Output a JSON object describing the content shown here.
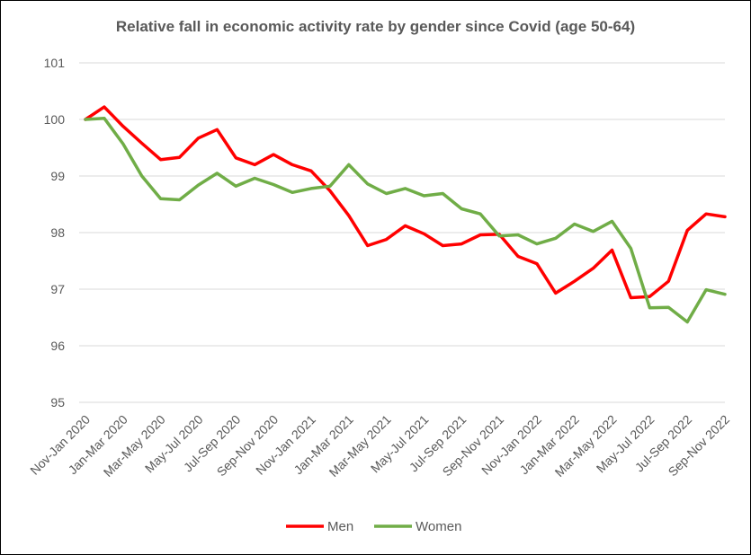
{
  "chart_data": {
    "type": "line",
    "title": "Relative fall in economic activity rate by gender since Covid (age 50-64)",
    "xlabel": "",
    "ylabel": "",
    "ylim": [
      95,
      101
    ],
    "yticks": [
      95,
      96,
      97,
      98,
      99,
      100,
      101
    ],
    "grid": "horizontal",
    "legend": "bottom",
    "x": [
      "Nov-Jan 2020",
      "Dec-Feb 2020",
      "Jan-Mar 2020",
      "Feb-Apr 2020",
      "Mar-May 2020",
      "Apr-Jun 2020",
      "May-Jul 2020",
      "Jun-Aug 2020",
      "Jul-Sep 2020",
      "Aug-Oct 2020",
      "Sep-Nov 2020",
      "Oct-Dec 2020",
      "Nov-Jan 2021",
      "Dec-Feb 2021",
      "Jan-Mar 2021",
      "Feb-Apr 2021",
      "Mar-May 2021",
      "Apr-Jun 2021",
      "May-Jul 2021",
      "Jun-Aug 2021",
      "Jul-Sep 2021",
      "Aug-Oct 2021",
      "Sep-Nov 2021",
      "Oct-Dec 2021",
      "Nov-Jan 2022",
      "Dec-Feb 2022",
      "Jan-Mar 2022",
      "Feb-Apr 2022",
      "Mar-May 2022",
      "Apr-Jun 2022",
      "May-Jul 2022",
      "Jun-Aug 2022",
      "Jul-Sep 2022",
      "Aug-Oct 2022",
      "Sep-Nov 2022"
    ],
    "x_tick_labels_shown": [
      "Nov-Jan 2020",
      "Jan-Mar 2020",
      "Mar-May 2020",
      "May-Jul 2020",
      "Jul-Sep 2020",
      "Sep-Nov 2020",
      "Nov-Jan 2021",
      "Jan-Mar 2021",
      "Mar-May 2021",
      "May-Jul 2021",
      "Jul-Sep 2021",
      "Sep-Nov 2021",
      "Nov-Jan 2022",
      "Jan-Mar 2022",
      "Mar-May 2022",
      "May-Jul 2022",
      "Jul-Sep 2022",
      "Sep-Nov 2022"
    ],
    "series": [
      {
        "name": "Men",
        "color": "#ff0000",
        "values": [
          100.0,
          100.22,
          99.88,
          99.58,
          99.29,
          99.33,
          99.67,
          99.82,
          99.32,
          99.2,
          99.38,
          99.2,
          99.09,
          98.74,
          98.3,
          97.77,
          97.88,
          98.12,
          97.98,
          97.77,
          97.8,
          97.96,
          97.97,
          97.58,
          97.45,
          96.93,
          97.14,
          97.37,
          97.69,
          96.85,
          96.87,
          97.14,
          98.04,
          98.33,
          98.28
        ]
      },
      {
        "name": "Women",
        "color": "#70ad47",
        "values": [
          100.0,
          100.02,
          99.57,
          99.0,
          98.6,
          98.58,
          98.84,
          99.05,
          98.82,
          98.96,
          98.85,
          98.71,
          98.78,
          98.82,
          99.2,
          98.86,
          98.69,
          98.78,
          98.65,
          98.69,
          98.42,
          98.33,
          97.94,
          97.96,
          97.8,
          97.9,
          98.15,
          98.02,
          98.2,
          97.72,
          96.67,
          96.68,
          96.42,
          96.99,
          96.91
        ]
      }
    ]
  }
}
